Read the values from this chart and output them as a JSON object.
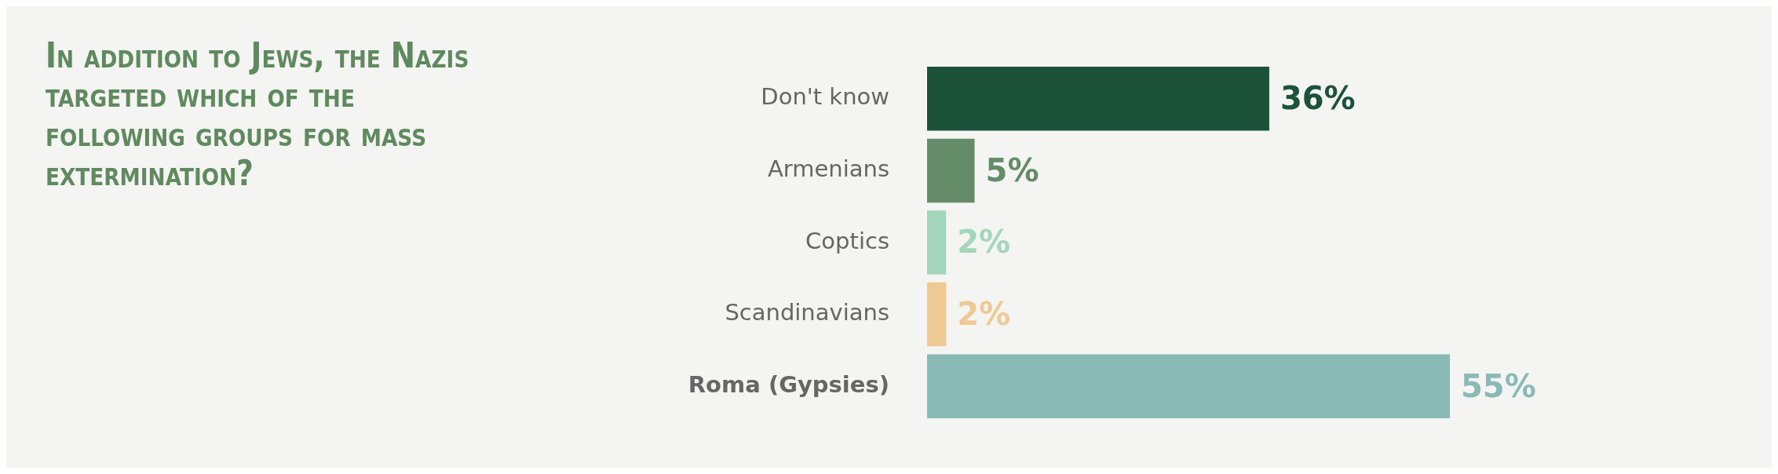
{
  "chart_data": {
    "type": "bar",
    "orientation": "horizontal",
    "title": "In addition to Jews, the Nazis targeted which of the following groups for mass extermination?",
    "categories": [
      "Don't know",
      "Armenians",
      "Coptics",
      "Scandinavians",
      "Roma (Gypsies)"
    ],
    "values": [
      36,
      5,
      2,
      2,
      55
    ],
    "value_labels": [
      "36%",
      "5%",
      "2%",
      "2%",
      "55%"
    ],
    "colors": [
      "#1c5239",
      "#648c68",
      "#a3d6bb",
      "#efc994",
      "#8abab6"
    ]
  }
}
